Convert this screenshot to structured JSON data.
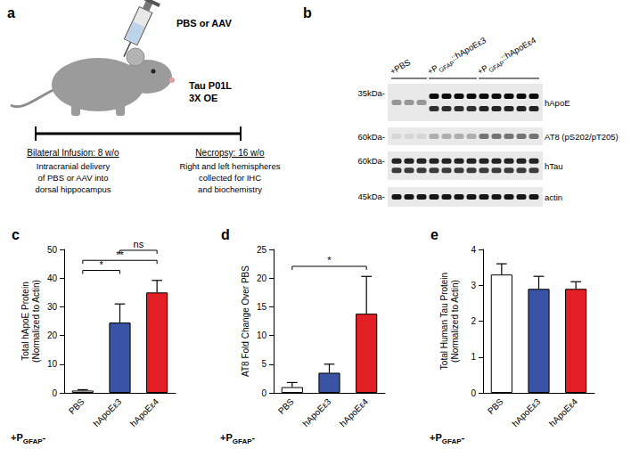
{
  "panel_a": {
    "label": "a",
    "syringe_text": "PBS or AAV",
    "mouse_text": [
      "Tau P01L",
      "3X OE"
    ],
    "timeline": [
      {
        "title": "Bilateral Infusion: 8 w/o",
        "lines": [
          "Intracranial delivery",
          "of PBS or AAV into",
          "dorsal hippocampus"
        ]
      },
      {
        "title": "Necropsy: 16 w/o",
        "lines": [
          "Right and left hemispheres",
          "collected for IHC",
          "and biochemistry"
        ]
      }
    ]
  },
  "panel_b": {
    "label": "b",
    "groups": [
      {
        "main": "+PBS",
        "lanes": 3
      },
      {
        "main": "+P",
        "sub": "GFAP",
        "tail": "::hApoEε3",
        "lanes": 4
      },
      {
        "main": "+P",
        "sub": "GFAP",
        "tail": "::hApoEε4",
        "lanes": 5
      }
    ],
    "rows": [
      {
        "name": "hApoE",
        "mw": "35kDa-"
      },
      {
        "name": "AT8 (pS202/pT205)",
        "mw": "60kDa-"
      },
      {
        "name": "hTau",
        "mw": "60kDa-"
      },
      {
        "name": "actin",
        "mw": "45kDa-"
      }
    ]
  },
  "chart_data": [
    {
      "type": "bar",
      "title": "c",
      "ylabel": "Total hApoE Protein\n(Normalized to Actin)",
      "xlabel": {
        "main": "+P",
        "sub": "GFAP",
        "tail": "-"
      },
      "categories": [
        "PBS",
        "hApoEε3",
        "hApoEε4"
      ],
      "values": [
        0.8,
        24.5,
        35
      ],
      "errors": [
        0.3,
        6.5,
        4.2
      ],
      "colors": [
        "#ffffff",
        "#3a53a4",
        "#e31f26"
      ],
      "ylim": [
        0,
        50
      ],
      "yticks": [
        0,
        10,
        20,
        30,
        40,
        50
      ],
      "grid": false,
      "annotations": [
        {
          "between": [
            "PBS",
            "hApoEε3"
          ],
          "text": "*"
        },
        {
          "between": [
            "PBS",
            "hApoEε4"
          ],
          "text": "**"
        },
        {
          "between": [
            "hApoEε3",
            "hApoEε4"
          ],
          "text": "ns"
        }
      ]
    },
    {
      "type": "bar",
      "title": "d",
      "ylabel": "AT8 Fold Change Over PBS",
      "xlabel": {
        "main": "+P",
        "sub": "GFAP",
        "tail": "-"
      },
      "categories": [
        "PBS",
        "hApoEε3",
        "hApoEε4"
      ],
      "values": [
        1,
        3.5,
        13.8
      ],
      "errors": [
        0.8,
        1.5,
        6.5
      ],
      "colors": [
        "#ffffff",
        "#3a53a4",
        "#e31f26"
      ],
      "ylim": [
        0,
        25
      ],
      "yticks": [
        0,
        5,
        10,
        15,
        20,
        25
      ],
      "grid": false,
      "annotations": [
        {
          "between": [
            "PBS",
            "hApoEε4"
          ],
          "text": "*"
        }
      ]
    },
    {
      "type": "bar",
      "title": "e",
      "ylabel": "Total Human Tau Protein\n(Normalized to Actin)",
      "xlabel": {
        "main": "+P",
        "sub": "GFAP",
        "tail": "-"
      },
      "categories": [
        "PBS",
        "hApoEε3",
        "hApoEε4"
      ],
      "values": [
        3.3,
        2.9,
        2.9
      ],
      "errors": [
        0.3,
        0.35,
        0.2
      ],
      "colors": [
        "#ffffff",
        "#3a53a4",
        "#e31f26"
      ],
      "ylim": [
        0,
        4
      ],
      "yticks": [
        0,
        1,
        2,
        3,
        4
      ],
      "grid": false,
      "annotations": []
    }
  ]
}
